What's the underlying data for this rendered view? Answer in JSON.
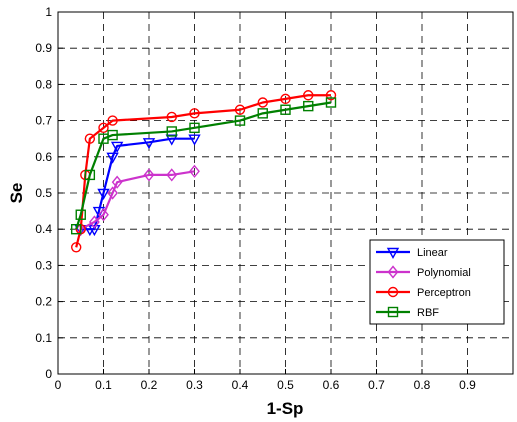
{
  "chart_data": {
    "type": "line",
    "title": "",
    "xlabel": "1-Sp",
    "ylabel": "Se",
    "xlim": [
      0,
      1
    ],
    "ylim": [
      0,
      1
    ],
    "x_ticks": [
      0,
      0.1,
      0.2,
      0.3,
      0.4,
      0.5,
      0.6,
      0.7,
      0.8,
      0.9
    ],
    "y_ticks": [
      0,
      0.1,
      0.2,
      0.3,
      0.4,
      0.5,
      0.6,
      0.7,
      0.8,
      0.9,
      1
    ],
    "grid": true,
    "legend_position": "lower-right",
    "series": [
      {
        "name": "Linear",
        "color": "#0000ff",
        "marker": "triangle-down",
        "x": [
          0.05,
          0.07,
          0.08,
          0.09,
          0.1,
          0.12,
          0.13,
          0.2,
          0.25,
          0.3
        ],
        "y": [
          0.4,
          0.4,
          0.4,
          0.45,
          0.5,
          0.6,
          0.63,
          0.64,
          0.65,
          0.65
        ]
      },
      {
        "name": "Polynomial",
        "color": "#cc33cc",
        "marker": "diamond",
        "x": [
          0.05,
          0.08,
          0.1,
          0.12,
          0.13,
          0.2,
          0.25,
          0.3
        ],
        "y": [
          0.4,
          0.42,
          0.44,
          0.5,
          0.53,
          0.55,
          0.55,
          0.56
        ]
      },
      {
        "name": "Perceptron",
        "color": "#ff0000",
        "marker": "circle",
        "x": [
          0.04,
          0.05,
          0.06,
          0.07,
          0.1,
          0.12,
          0.25,
          0.3,
          0.4,
          0.45,
          0.5,
          0.55,
          0.6
        ],
        "y": [
          0.35,
          0.4,
          0.55,
          0.65,
          0.68,
          0.7,
          0.71,
          0.72,
          0.73,
          0.75,
          0.76,
          0.77,
          0.77
        ]
      },
      {
        "name": "RBF",
        "color": "#008000",
        "marker": "square",
        "x": [
          0.04,
          0.05,
          0.07,
          0.1,
          0.12,
          0.25,
          0.3,
          0.4,
          0.45,
          0.5,
          0.55,
          0.6
        ],
        "y": [
          0.4,
          0.44,
          0.55,
          0.65,
          0.66,
          0.67,
          0.68,
          0.7,
          0.72,
          0.73,
          0.74,
          0.75
        ]
      }
    ]
  }
}
